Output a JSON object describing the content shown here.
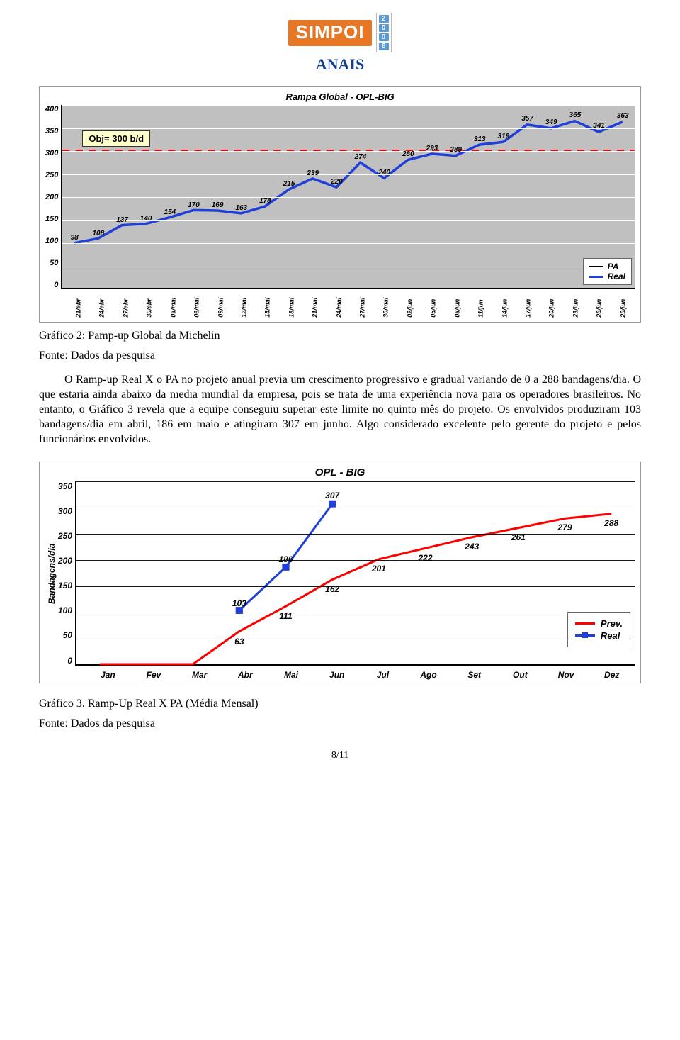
{
  "header": {
    "brand": "SIMPOI",
    "year_digits": [
      "2",
      "0",
      "0",
      "8"
    ],
    "anais": "ANAIS"
  },
  "chart1": {
    "type": "line",
    "title": "Rampa Global - OPL-BIG",
    "title_fontsize": 13,
    "background_color": "#c0c0c0",
    "grid_color": "#ffffff",
    "ylim": [
      0,
      400
    ],
    "ytick_step": 50,
    "yticks": [
      "400",
      "350",
      "300",
      "250",
      "200",
      "150",
      "100",
      "50",
      "0"
    ],
    "objective_value": 300,
    "objective_color": "#ff0000",
    "callout_text": "Obj= 300 b/d",
    "callout_bg": "#ffffcc",
    "categories": [
      "21/abr",
      "24/abr",
      "27/abr",
      "30/abr",
      "03/mai",
      "06/mai",
      "09/mai",
      "12/mai",
      "15/mai",
      "18/mai",
      "21/mai",
      "24/mai",
      "27/mai",
      "30/mai",
      "02/jun",
      "05/jun",
      "08/jun",
      "11/jun",
      "14/jun",
      "17/jun",
      "20/jun",
      "23/jun",
      "26/jun",
      "29/jun"
    ],
    "real_values": [
      98,
      108,
      137,
      140,
      154,
      170,
      169,
      163,
      178,
      215,
      239,
      220,
      274,
      240,
      280,
      293,
      289,
      313,
      319,
      357,
      349,
      365,
      341,
      363
    ],
    "data_labels": [
      {
        "i": 0,
        "v": "98"
      },
      {
        "i": 1,
        "v": "108"
      },
      {
        "i": 2,
        "v": "137"
      },
      {
        "i": 3,
        "v": "140"
      },
      {
        "i": 4,
        "v": "154"
      },
      {
        "i": 5,
        "v": "170"
      },
      {
        "i": 6,
        "v": "169"
      },
      {
        "i": 7,
        "v": "163"
      },
      {
        "i": 8,
        "v": "178"
      },
      {
        "i": 9,
        "v": "215"
      },
      {
        "i": 10,
        "v": "239"
      },
      {
        "i": 11,
        "v": "220"
      },
      {
        "i": 12,
        "v": "274"
      },
      {
        "i": 13,
        "v": "240"
      },
      {
        "i": 14,
        "v": "280"
      },
      {
        "i": 15,
        "v": "293"
      },
      {
        "i": 16,
        "v": "289"
      },
      {
        "i": 17,
        "v": "313"
      },
      {
        "i": 18,
        "v": "319"
      },
      {
        "i": 19,
        "v": "357"
      },
      {
        "i": 20,
        "v": "349"
      },
      {
        "i": 21,
        "v": "365"
      },
      {
        "i": 22,
        "v": "341"
      },
      {
        "i": 23,
        "v": "363"
      }
    ],
    "real_color": "#1f3fd8",
    "real_linewidth": 3.5,
    "pa_color": "#000000",
    "legend": {
      "items": [
        {
          "label": "PA",
          "color": "#000000",
          "width": 2
        },
        {
          "label": "Real",
          "color": "#1f3fd8",
          "width": 3
        }
      ]
    }
  },
  "caption1a": "Gráfico 2: Pamp-up Global da Michelin",
  "caption1b": "Fonte: Dados da pesquisa",
  "paragraph": "O Ramp-up Real X o PA no projeto anual previa um crescimento progressivo e gradual variando de 0 a 288 bandagens/dia. O que estaria ainda abaixo da media mundial da empresa, pois se trata de uma experiência nova para os operadores brasileiros. No entanto, o Gráfico 3 revela que a equipe conseguiu superar este limite no quinto mês do projeto. Os envolvidos produziram 103 bandagens/dia em abril, 186 em maio e atingiram 307 em junho. Algo considerado excelente pelo gerente do projeto e pelos funcionários envolvidos.",
  "chart2": {
    "type": "line",
    "title": "OPL - BIG",
    "title_fontsize": 15,
    "ylabel": "Bandagens/dia",
    "background_color": "#ffffff",
    "grid_color": "#000000",
    "ylim": [
      0,
      350
    ],
    "ytick_step": 50,
    "yticks": [
      "350",
      "300",
      "250",
      "200",
      "150",
      "100",
      "50",
      "0"
    ],
    "months": [
      "Jan",
      "Fev",
      "Mar",
      "Abr",
      "Mai",
      "Jun",
      "Jul",
      "Ago",
      "Set",
      "Out",
      "Nov",
      "Dez"
    ],
    "prev_values": [
      0,
      0,
      0,
      63,
      111,
      162,
      201,
      222,
      243,
      261,
      279,
      288
    ],
    "prev_color": "#ff0000",
    "prev_linewidth": 3,
    "real_values": [
      null,
      null,
      null,
      103,
      186,
      307,
      null,
      null,
      null,
      null,
      null,
      null
    ],
    "real_color": "#1f3fd8",
    "real_linewidth": 3,
    "real_marker": "square",
    "real_marker_size": 10,
    "data_labels_prev": [
      {
        "i": 3,
        "v": "63"
      },
      {
        "i": 4,
        "v": "111"
      },
      {
        "i": 5,
        "v": "162"
      },
      {
        "i": 6,
        "v": "201"
      },
      {
        "i": 7,
        "v": "222"
      },
      {
        "i": 8,
        "v": "243"
      },
      {
        "i": 9,
        "v": "261"
      },
      {
        "i": 10,
        "v": "279"
      },
      {
        "i": 11,
        "v": "288"
      }
    ],
    "data_labels_real": [
      {
        "i": 3,
        "v": "103"
      },
      {
        "i": 4,
        "v": "186"
      },
      {
        "i": 5,
        "v": "307"
      }
    ],
    "legend": {
      "items": [
        {
          "label": "Prev.",
          "color": "#ff0000",
          "marker": false
        },
        {
          "label": "Real",
          "color": "#1f3fd8",
          "marker": true
        }
      ]
    }
  },
  "caption2a": "Gráfico 3. Ramp-Up Real X PA (Média Mensal)",
  "caption2b": "Fonte: Dados da pesquisa",
  "page_number": "8/11"
}
